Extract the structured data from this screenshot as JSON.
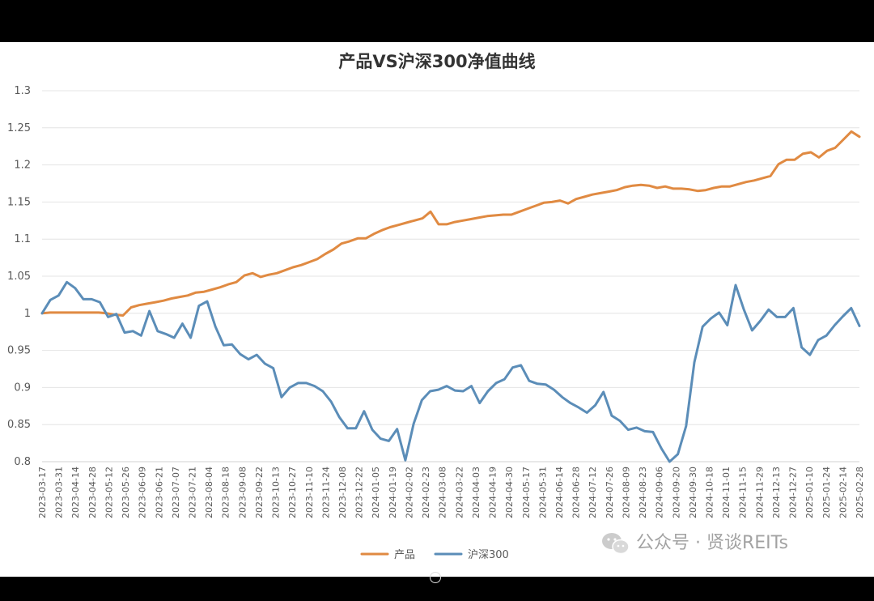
{
  "chart_data": {
    "type": "line",
    "title": "产品VS沪深300净值曲线",
    "xlabel": "",
    "ylabel": "",
    "ylim": [
      0.8,
      1.3
    ],
    "yticks": [
      "1.3",
      "1.25",
      "1.2",
      "1.15",
      "1.1",
      "1.05",
      "1",
      "0.95",
      "0.9",
      "0.85",
      "0.8"
    ],
    "grid": true,
    "legend_position": "bottom",
    "x_tick_labels": [
      "2023-03-17",
      "2023-03-31",
      "2023-04-14",
      "2023-04-28",
      "2023-05-12",
      "2023-05-26",
      "2023-06-09",
      "2023-06-21",
      "2023-07-07",
      "2023-07-21",
      "2023-08-04",
      "2023-08-18",
      "2023-09-08",
      "2023-09-22",
      "2023-10-13",
      "2023-10-27",
      "2023-11-10",
      "2023-11-24",
      "2023-12-08",
      "2023-12-22",
      "2024-01-05",
      "2024-01-19",
      "2024-02-02",
      "2024-02-23",
      "2024-03-08",
      "2024-03-22",
      "2024-04-03",
      "2024-04-19",
      "2024-04-30",
      "2024-05-17",
      "2024-05-31",
      "2024-06-14",
      "2024-06-28",
      "2024-07-12",
      "2024-07-26",
      "2024-08-09",
      "2024-08-23",
      "2024-09-06",
      "2024-09-20",
      "2024-09-30",
      "2024-10-18",
      "2024-11-01",
      "2024-11-15",
      "2024-11-29",
      "2024-12-13",
      "2024-12-27",
      "2025-01-10",
      "2025-01-24",
      "2025-02-14",
      "2025-02-28"
    ],
    "series": [
      {
        "name": "产品",
        "color": "#e08a42",
        "values": [
          1.0,
          1.001,
          1.001,
          1.001,
          1.001,
          1.001,
          1.001,
          1.001,
          1.0,
          0.998,
          0.997,
          1.008,
          1.011,
          1.013,
          1.015,
          1.017,
          1.02,
          1.022,
          1.024,
          1.028,
          1.029,
          1.032,
          1.035,
          1.039,
          1.042,
          1.051,
          1.054,
          1.049,
          1.052,
          1.054,
          1.058,
          1.062,
          1.065,
          1.069,
          1.073,
          1.08,
          1.086,
          1.094,
          1.097,
          1.101,
          1.101,
          1.107,
          1.112,
          1.116,
          1.119,
          1.122,
          1.125,
          1.128,
          1.137,
          1.12,
          1.12,
          1.123,
          1.125,
          1.127,
          1.129,
          1.131,
          1.132,
          1.133,
          1.133,
          1.137,
          1.141,
          1.145,
          1.149,
          1.15,
          1.152,
          1.148,
          1.154,
          1.157,
          1.16,
          1.162,
          1.164,
          1.166,
          1.17,
          1.172,
          1.173,
          1.172,
          1.169,
          1.171,
          1.168,
          1.168,
          1.167,
          1.165,
          1.166,
          1.169,
          1.171,
          1.171,
          1.174,
          1.177,
          1.179,
          1.182,
          1.185,
          1.201,
          1.207,
          1.207,
          1.215,
          1.217,
          1.21,
          1.219,
          1.223,
          1.234,
          1.245,
          1.238
        ]
      },
      {
        "name": "沪深300",
        "color": "#5b8db8",
        "values": [
          1.0,
          1.018,
          1.024,
          1.042,
          1.034,
          1.019,
          1.019,
          1.015,
          0.995,
          0.999,
          0.974,
          0.976,
          0.97,
          1.003,
          0.976,
          0.972,
          0.967,
          0.986,
          0.967,
          1.01,
          1.016,
          0.982,
          0.957,
          0.958,
          0.945,
          0.938,
          0.944,
          0.932,
          0.926,
          0.887,
          0.9,
          0.906,
          0.906,
          0.902,
          0.895,
          0.881,
          0.86,
          0.845,
          0.845,
          0.868,
          0.843,
          0.831,
          0.828,
          0.844,
          0.802,
          0.851,
          0.883,
          0.895,
          0.897,
          0.902,
          0.896,
          0.895,
          0.902,
          0.879,
          0.895,
          0.906,
          0.911,
          0.927,
          0.93,
          0.909,
          0.905,
          0.904,
          0.897,
          0.887,
          0.879,
          0.873,
          0.866,
          0.876,
          0.894,
          0.862,
          0.855,
          0.843,
          0.846,
          0.841,
          0.84,
          0.818,
          0.8,
          0.81,
          0.848,
          0.934,
          0.982,
          0.993,
          1.001,
          0.984,
          1.038,
          1.005,
          0.977,
          0.99,
          1.005,
          0.995,
          0.995,
          1.007,
          0.954,
          0.944,
          0.964,
          0.97,
          0.984,
          0.996,
          1.007,
          0.983
        ]
      }
    ]
  },
  "watermark": {
    "text": "公众号 · 贤谈REITs",
    "icon": "wechat-icon"
  }
}
